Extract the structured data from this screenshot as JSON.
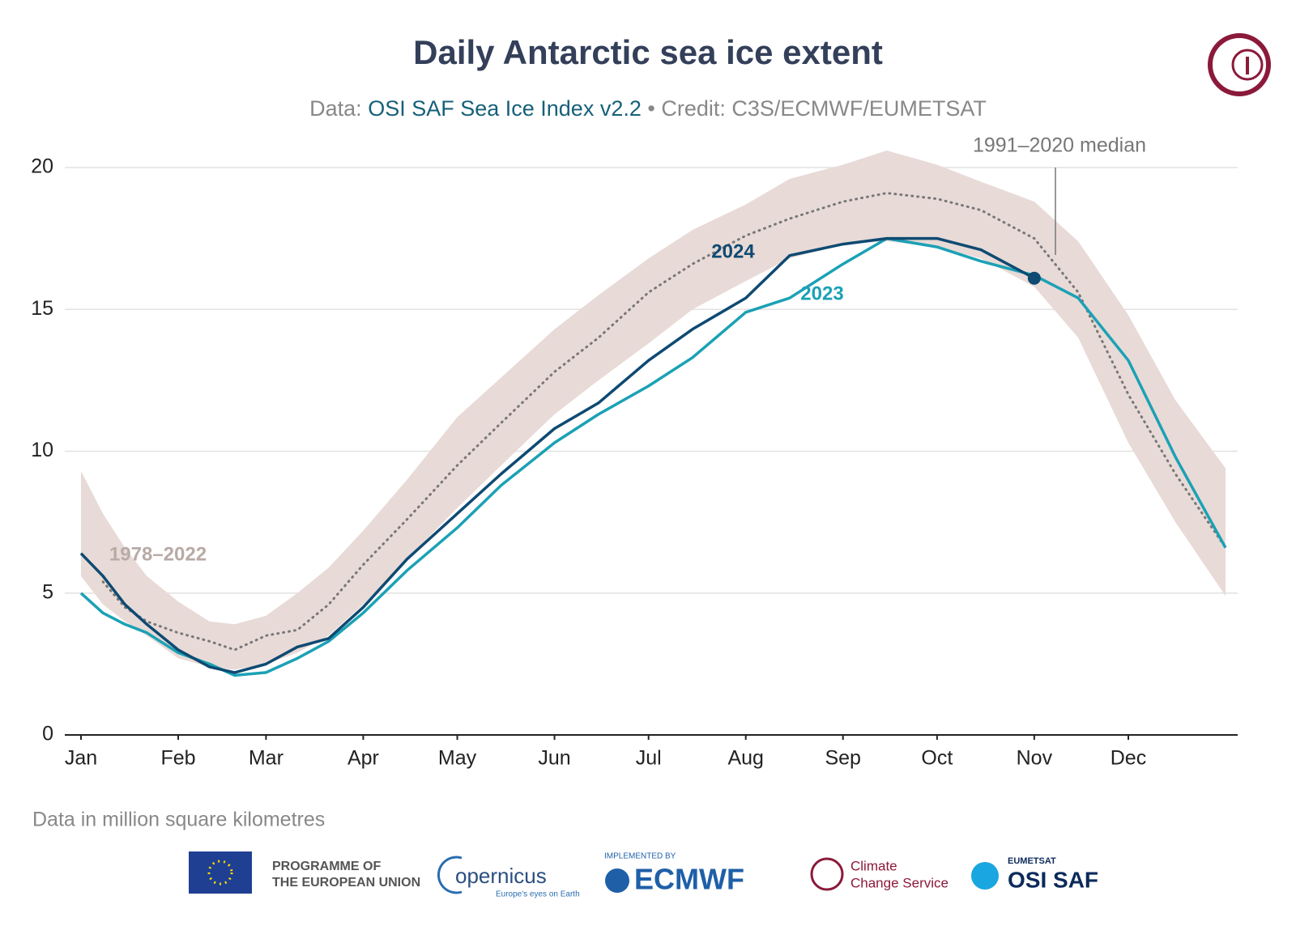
{
  "chart_data": {
    "type": "line",
    "title": "Daily Antarctic sea ice extent",
    "subtitle": {
      "prefix": "Data:",
      "source": "OSI SAF Sea Ice Index v2.2",
      "credit": "• Credit: C3S/ECMWF/EUMETSAT"
    },
    "note": "Data in million square kilometres",
    "x": [
      1,
      8,
      15,
      22,
      32,
      42,
      50,
      60,
      70,
      80,
      91,
      105,
      121,
      135,
      152,
      166,
      182,
      196,
      213,
      227,
      244,
      258,
      274,
      288,
      305,
      319,
      335,
      350,
      366
    ],
    "xlim": [
      1,
      366
    ],
    "xticks": [
      {
        "value": 1,
        "label": "Jan"
      },
      {
        "value": 32,
        "label": "Feb"
      },
      {
        "value": 60,
        "label": "Mar"
      },
      {
        "value": 91,
        "label": "Apr"
      },
      {
        "value": 121,
        "label": "May"
      },
      {
        "value": 152,
        "label": "Jun"
      },
      {
        "value": 182,
        "label": "Jul"
      },
      {
        "value": 213,
        "label": "Aug"
      },
      {
        "value": 244,
        "label": "Sep"
      },
      {
        "value": 274,
        "label": "Oct"
      },
      {
        "value": 305,
        "label": "Nov"
      },
      {
        "value": 335,
        "label": "Dec"
      }
    ],
    "ylim": [
      0,
      20
    ],
    "yticks": [
      0,
      5,
      10,
      15,
      20
    ],
    "grid": true,
    "series": [
      {
        "name": "1978–2022",
        "color": "#e8dad7",
        "low": [
          5.6,
          4.6,
          4.0,
          3.5,
          2.7,
          2.4,
          2.3,
          2.5,
          2.9,
          3.5,
          4.6,
          6.2,
          8.0,
          9.5,
          11.3,
          12.5,
          13.8,
          15.0,
          16.0,
          16.8,
          17.3,
          17.4,
          17.2,
          16.8,
          15.8,
          14.0,
          10.3,
          7.5,
          4.9
        ],
        "high": [
          9.3,
          7.8,
          6.6,
          5.6,
          4.7,
          4.0,
          3.9,
          4.2,
          5.0,
          5.9,
          7.2,
          9.0,
          11.2,
          12.6,
          14.3,
          15.5,
          16.8,
          17.8,
          18.7,
          19.6,
          20.1,
          20.6,
          20.1,
          19.5,
          18.8,
          17.4,
          14.8,
          11.8,
          9.4
        ]
      },
      {
        "name": "1991–2020 median",
        "color": "#777777",
        "dotted": true,
        "values": [
          null,
          5.4,
          4.5,
          4.0,
          3.6,
          3.3,
          3.0,
          3.5,
          3.7,
          4.6,
          6.0,
          7.6,
          9.5,
          11.0,
          12.8,
          14.0,
          15.6,
          16.6,
          17.6,
          18.2,
          18.8,
          19.1,
          18.9,
          18.5,
          17.5,
          15.6,
          12.0,
          9.2,
          6.6
        ]
      },
      {
        "name": "2023",
        "color": "#1ba1b5",
        "values": [
          5.0,
          4.3,
          3.9,
          3.6,
          2.9,
          2.5,
          2.1,
          2.2,
          2.7,
          3.3,
          4.3,
          5.8,
          7.3,
          8.8,
          10.3,
          11.3,
          12.3,
          13.3,
          14.9,
          15.4,
          16.6,
          17.5,
          17.2,
          16.7,
          16.2,
          15.4,
          13.2,
          9.8,
          6.6
        ]
      },
      {
        "name": "2024",
        "color": "#0e4a72",
        "end_marker": true,
        "values": [
          6.4,
          5.6,
          4.6,
          3.9,
          3.0,
          2.4,
          2.2,
          2.5,
          3.1,
          3.4,
          4.5,
          6.2,
          7.8,
          9.2,
          10.8,
          11.7,
          13.2,
          14.3,
          15.4,
          16.9,
          17.3,
          17.5,
          17.5,
          17.1,
          16.1,
          null,
          null,
          null,
          null
        ]
      }
    ]
  },
  "footer": {
    "eu": [
      "PROGRAMME OF",
      "THE EUROPEAN UNION"
    ],
    "copernicus": {
      "name": "opernicus",
      "tagline": "Europe's eyes on Earth"
    },
    "ecmwf": {
      "caption": "IMPLEMENTED BY",
      "name": "ECMWF"
    },
    "c3s": [
      "Climate",
      "Change Service"
    ],
    "osisaf": {
      "caption": "EUMETSAT",
      "name": "OSI SAF"
    }
  }
}
